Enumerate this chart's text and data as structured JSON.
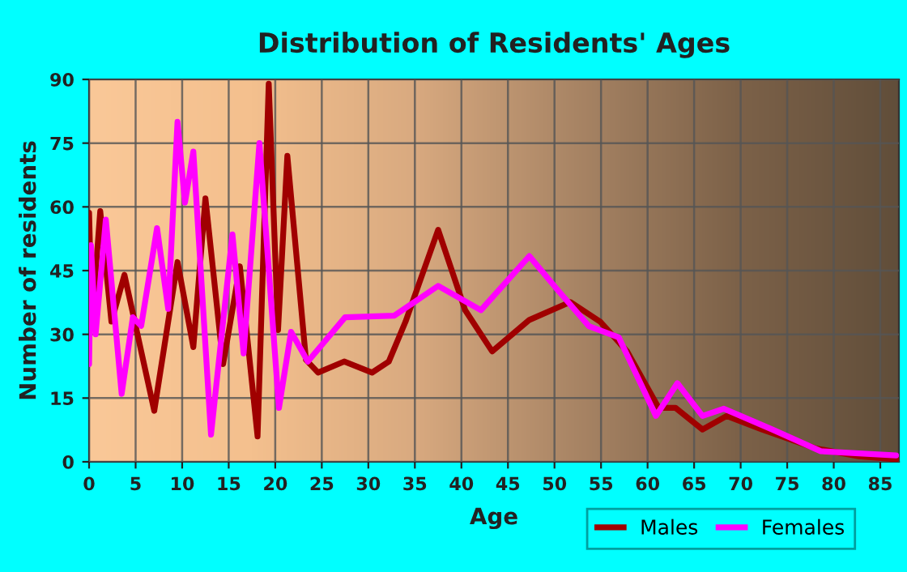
{
  "chart_data": {
    "type": "line",
    "title": "Distribution of Residents' Ages",
    "xlabel": "Age",
    "ylabel": "Number of residents",
    "xlim": [
      0,
      87
    ],
    "xticks": [
      0,
      5,
      10,
      15,
      20,
      25,
      30,
      35,
      40,
      45,
      50,
      55,
      60,
      65,
      70,
      75,
      80,
      85
    ],
    "ylim": [
      0,
      90
    ],
    "yticks": [
      0,
      15,
      30,
      45,
      60,
      75,
      90
    ],
    "grid": true,
    "legend": "bottom",
    "line_style": "solid",
    "marker": "none",
    "series": [
      {
        "name": "Males",
        "color": "#a00000",
        "x": [
          0,
          0.3,
          1.2,
          2.4,
          3.8,
          7.0,
          9.5,
          11.2,
          12.5,
          14.4,
          16.2,
          18.1,
          19.3,
          20.3,
          21.3,
          23.3,
          24.6,
          27.4,
          30.4,
          32.2,
          34,
          37.5,
          40.4,
          43.3,
          47.3,
          51.7,
          54.9,
          57.8,
          61.2,
          63,
          65.9,
          68.5,
          72.3,
          78,
          82.7,
          86.7
        ],
        "values": [
          58.6,
          33,
          59,
          33,
          44,
          12,
          47,
          27,
          62,
          23,
          46,
          6,
          89,
          31,
          72,
          24,
          21,
          23.6,
          21,
          23.6,
          33,
          54.6,
          35.7,
          26,
          33.4,
          37.6,
          33,
          26,
          12.7,
          12.7,
          7.6,
          10.8,
          7.6,
          3.2,
          1.3,
          0.6
        ]
      },
      {
        "name": "Females",
        "color": "#ff00ff",
        "x": [
          0,
          0.2,
          0.7,
          1.8,
          3.5,
          4.7,
          5.6,
          7.3,
          8.5,
          9.5,
          10.3,
          11.2,
          13.1,
          15.4,
          16.6,
          18.3,
          20.4,
          21.7,
          23.5,
          27.5,
          32.8,
          37.5,
          42.1,
          47.3,
          50.2,
          53.7,
          56.9,
          60.9,
          63.2,
          65.9,
          68.2,
          73.4,
          78.6,
          86.7
        ],
        "values": [
          23,
          51,
          30,
          57,
          16,
          34,
          32,
          55,
          36,
          80,
          61,
          73,
          6.4,
          53.5,
          25.5,
          75,
          12.7,
          30.6,
          23.6,
          34,
          34.4,
          41.4,
          35.7,
          48.4,
          40.8,
          31.9,
          29.3,
          10.8,
          18.5,
          10.8,
          12.5,
          7.6,
          2.5,
          1.5
        ]
      }
    ]
  }
}
